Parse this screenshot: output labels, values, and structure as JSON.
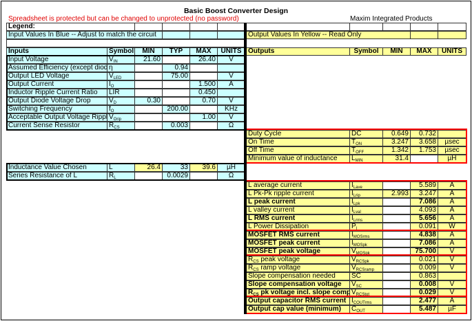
{
  "title": "Basic Boost Converter Design",
  "warning": "Spreadsheet is protected but can be changed to unprotected (no password)",
  "company": "Maxim Integrated Products",
  "legend": {
    "label": "Legend:",
    "input_note": "Input Values In Blue -- Adjust to match the circuit",
    "output_note": "Output Values In Yellow -- Read Only"
  },
  "colors": {
    "input": "#ccffff",
    "output": "#ffff99",
    "highlight_box": "#ff0000",
    "warning": "#e00000"
  },
  "inputs": {
    "headers": [
      "Inputs",
      "Symbol",
      "MIN",
      "TYP",
      "MAX",
      "UNITS"
    ],
    "rows": [
      {
        "label": "Input Voltage",
        "sym": "V",
        "sub": "IN",
        "min": "21.60",
        "typ": "",
        "max": "26.40",
        "units": "V"
      },
      {
        "label": "Assumed Efficiency (except diode",
        "sym": "η",
        "sub": "",
        "min": "",
        "typ": "0.94",
        "max": "",
        "units": ""
      },
      {
        "label": "Output LED Voltage",
        "sym": "V",
        "sub": "LED",
        "min": "",
        "typ": "75.00",
        "max": "",
        "units": "V"
      },
      {
        "label": "Output Current",
        "sym": "I",
        "sub": "O",
        "min": "",
        "typ": "",
        "max": "1.500",
        "units": "A"
      },
      {
        "label": "Inductor Ripple Current Ratio",
        "sym": "LIR",
        "sub": "",
        "min": "",
        "typ": "",
        "max": "0.450",
        "units": ""
      },
      {
        "label": "Output Diode Voltage Drop",
        "sym": "V",
        "sub": "D",
        "min": "0.30",
        "typ": "",
        "max": "0.70",
        "units": "V"
      },
      {
        "label": "Switching Frequency",
        "sym": "f",
        "sub": "O",
        "min": "",
        "typ": "200.00",
        "max": "",
        "units": "KHz"
      },
      {
        "label": "Acceptable Output Voltage Ripple",
        "sym": "V",
        "sub": "Orip",
        "min": "",
        "typ": "",
        "max": "1.00",
        "units": "V"
      },
      {
        "label": "Current Sense Resistor",
        "sym": "R",
        "sub": "CS",
        "min": "",
        "typ": "0.003",
        "max": "",
        "units": "Ω"
      }
    ],
    "inductor_rows": [
      {
        "label": "Inductance Value Chosen",
        "sym": "L",
        "sub": "",
        "min": "26.4",
        "typ": "33",
        "max": "39.6",
        "units": "µH",
        "yellow": [
          "min",
          "max"
        ]
      },
      {
        "label": "Series Resistance of L",
        "sym": "R",
        "sub": "L",
        "min": "",
        "typ": "0.0029",
        "max": "",
        "units": "Ω"
      }
    ]
  },
  "outputs": {
    "headers": [
      "Outputs",
      "Symbol",
      "MIN",
      "MAX",
      "UNITS"
    ],
    "groups": [
      [
        {
          "label": "Duty Cycle",
          "sym": "DC",
          "sub": "",
          "min": "0.649",
          "max": "0.732",
          "units": ""
        },
        {
          "label": "On Time",
          "sym": "T",
          "sub": "ON",
          "min": "3.247",
          "max": "3.658",
          "units": "µsec"
        },
        {
          "label": "Off Time",
          "sym": "T",
          "sub": "OFF",
          "min": "1.342",
          "max": "1.753",
          "units": "µsec"
        },
        {
          "label": "Minimum value of inductance",
          "sym": "L",
          "sub": "MIN",
          "min": "31.4",
          "max": "",
          "units": "µH"
        }
      ],
      [
        {
          "label": "L average current",
          "sym": "I",
          "sub": "Lave",
          "min": "",
          "max": "5.589",
          "units": "A"
        },
        {
          "label": "L Pk-Pk ripple current",
          "sym": "I",
          "sub": "Lrip",
          "min": "2.993",
          "max": "3.247",
          "units": "A"
        },
        {
          "label": "L peak current",
          "sym": "I",
          "sub": "Lpk",
          "min": "",
          "max": "7.086",
          "units": "A",
          "bold": true
        },
        {
          "label": "L valley current",
          "sym": "I",
          "sub": "Lval",
          "min": "",
          "max": "4.093",
          "units": "A"
        },
        {
          "label": "L RMS current",
          "sym": "I",
          "sub": "Lrms",
          "min": "",
          "max": "5.656",
          "units": "A",
          "bold": true
        },
        {
          "label": "L Power Dissipation",
          "sym": "P",
          "sub": "l",
          "min": "",
          "max": "0.091",
          "units": "W"
        }
      ],
      [
        {
          "label": "MOSFET RMS current",
          "sym": "I",
          "sub": "MOSrms",
          "min": "",
          "max": "4.838",
          "units": "A",
          "bold": true
        },
        {
          "label": "MOSFET peak current",
          "sym": "I",
          "sub": "MOSpk",
          "min": "",
          "max": "7.086",
          "units": "A",
          "bold": true
        },
        {
          "label": "MOSFET peak voltage",
          "sym": "V",
          "sub": "MOSpk",
          "min": "",
          "max": "75.700",
          "units": "V",
          "bold": true
        }
      ],
      [
        {
          "label": "R",
          "lsub": "CS",
          "label2": " peak voltage",
          "sym": "V",
          "sub": "RCSpk",
          "min": "",
          "max": "0.021",
          "units": "V"
        },
        {
          "label": "R",
          "lsub": "CS",
          "label2": " ramp voltage",
          "sym": "V",
          "sub": "RCSramp",
          "min": "",
          "max": "0.009",
          "units": "V"
        },
        {
          "label": "Slope compensation needed",
          "sym": "SC",
          "sub": "",
          "min": "",
          "max": "0.863",
          "units": ""
        },
        {
          "label": "Slope compensation voltage",
          "sym": "V",
          "sub": "SC",
          "min": "",
          "max": "0.008",
          "units": "V",
          "bold": true
        },
        {
          "label": "R",
          "lsub": "CS",
          "label2": " pk voltage incl. slope comp.",
          "sym": "V",
          "sub": "RCStot",
          "min": "",
          "max": "0.029",
          "units": "V",
          "bold": true
        }
      ],
      [
        {
          "label": "Output capacitor RMS current",
          "sym": "I",
          "sub": "COUTrms",
          "min": "",
          "max": "2.477",
          "units": "A",
          "bold": true
        },
        {
          "label": "Output cap value (minimum)",
          "sym": "C",
          "sub": "OUT",
          "min": "",
          "max": "5.487",
          "units": "µF",
          "bold": true
        }
      ]
    ]
  }
}
